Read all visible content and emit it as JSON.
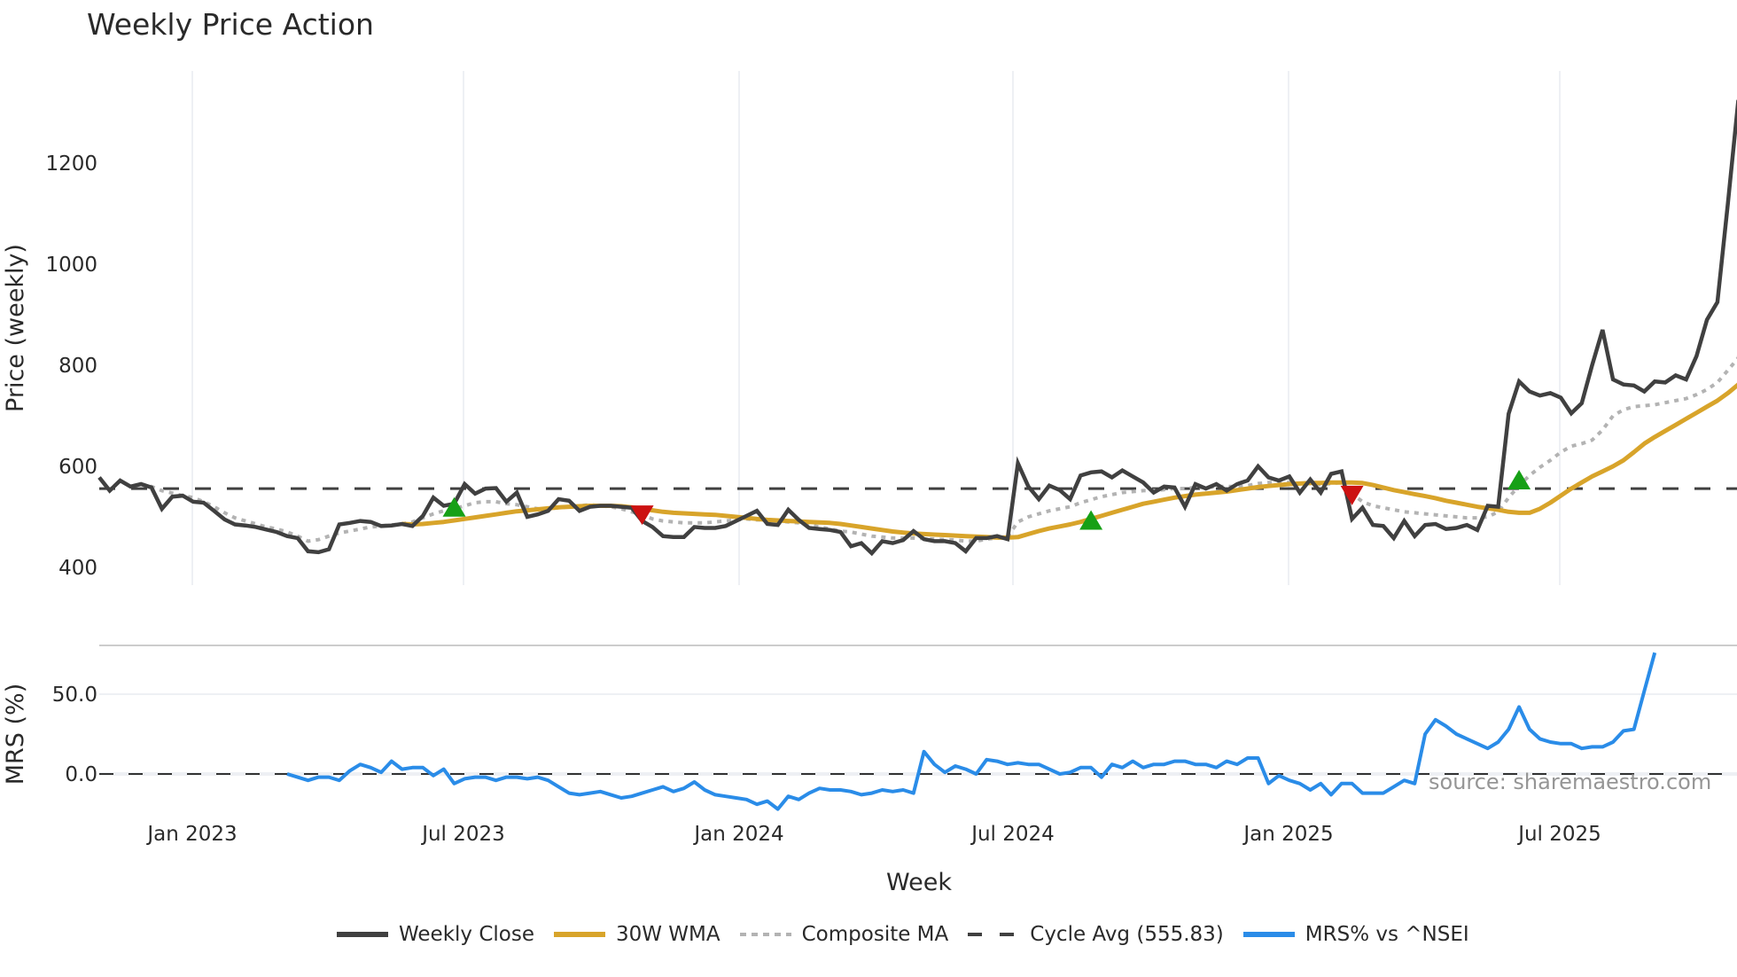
{
  "title": "Weekly Price Action",
  "watermark": "source: sharemaestro.com",
  "colors": {
    "weekly_close": "#404040",
    "wma": "#d8a42a",
    "composite_ma": "#b3b3b3",
    "cycle_avg": "#404040",
    "mrs": "#2a8ce8",
    "buy_marker": "#16a016",
    "sell_marker": "#cc1111",
    "grid": "#eef0f4",
    "panel_divider": "#cccccc"
  },
  "legend": [
    {
      "key": "weekly_close",
      "label": "Weekly Close",
      "style": "solid"
    },
    {
      "key": "wma",
      "label": "30W WMA",
      "style": "solid"
    },
    {
      "key": "composite_ma",
      "label": "Composite MA",
      "style": "dotted"
    },
    {
      "key": "cycle_avg",
      "label": "Cycle Avg (555.83)",
      "style": "dashed"
    },
    {
      "key": "mrs",
      "label": "MRS% vs ^NSEI",
      "style": "solid"
    }
  ],
  "chart_data": [
    {
      "type": "line",
      "title": "Weekly Price Action",
      "xlabel": "Week",
      "ylabel": "Price (weekly)",
      "x_tick_labels": [
        "Jan 2023",
        "Jul 2023",
        "Jan 2024",
        "Jul 2024",
        "Jan 2025",
        "Jul 2025"
      ],
      "y_ticks": [
        400,
        600,
        800,
        1000,
        1200
      ],
      "ylim": [
        365,
        1330
      ],
      "grid": "vertical",
      "legend_position": "bottom",
      "start_week": "2022-11-07",
      "series": [
        {
          "name": "Weekly Close",
          "values": [
            578,
            552,
            572,
            560,
            565,
            558,
            516,
            540,
            542,
            530,
            528,
            512,
            495,
            485,
            483,
            480,
            475,
            470,
            462,
            458,
            432,
            430,
            436,
            485,
            488,
            492,
            490,
            482,
            483,
            486,
            482,
            502,
            538,
            522,
            526,
            565,
            546,
            556,
            557,
            530,
            548,
            500,
            505,
            512,
            535,
            532,
            512,
            520,
            522,
            522,
            520,
            518,
            492,
            480,
            462,
            460,
            460,
            480,
            478,
            478,
            482,
            492,
            502,
            512,
            486,
            484,
            514,
            494,
            478,
            476,
            474,
            470,
            442,
            448,
            428,
            452,
            448,
            454,
            472,
            456,
            452,
            452,
            448,
            432,
            458,
            458,
            462,
            456,
            606,
            560,
            535,
            562,
            553,
            535,
            582,
            588,
            590,
            578,
            592,
            580,
            568,
            548,
            560,
            558,
            520,
            565,
            556,
            565,
            552,
            565,
            572,
            600,
            578,
            572,
            580,
            548,
            574,
            548,
            585,
            590,
            496,
            518,
            484,
            482,
            458,
            492,
            462,
            484,
            486,
            476,
            478,
            484,
            474,
            522,
            520,
            704,
            768,
            748,
            740,
            745,
            736,
            705,
            725,
            800,
            870,
            772,
            762,
            760,
            748,
            768,
            766,
            780,
            772,
            818,
            890,
            925,
            1120,
            1325
          ]
        },
        {
          "name": "30W WMA",
          "start_index": 29,
          "values": [
            486,
            485,
            486,
            488,
            490,
            493,
            496,
            499,
            502,
            505,
            508,
            511,
            513,
            515,
            517,
            519,
            520,
            521,
            522,
            522,
            522,
            521,
            519,
            516,
            513,
            510,
            508,
            507,
            506,
            505,
            504,
            502,
            500,
            498,
            496,
            494,
            493,
            492,
            491,
            490,
            489,
            488,
            486,
            483,
            480,
            477,
            474,
            471,
            469,
            467,
            466,
            465,
            464,
            463,
            462,
            461,
            460,
            459,
            459,
            460,
            466,
            472,
            477,
            481,
            485,
            490,
            496,
            502,
            508,
            514,
            520,
            526,
            530,
            534,
            538,
            541,
            544,
            546,
            548,
            550,
            553,
            556,
            559,
            561,
            563,
            565,
            566,
            567,
            567,
            568,
            568,
            568,
            567,
            563,
            558,
            553,
            549,
            545,
            541,
            537,
            532,
            528,
            524,
            520,
            517,
            514,
            510,
            508,
            508,
            516,
            528,
            542,
            556,
            568,
            580,
            590,
            600,
            612,
            628,
            645,
            658,
            670,
            682,
            694,
            706,
            718,
            730,
            745,
            762,
            790,
            820
          ]
        },
        {
          "name": "Composite MA",
          "values": [
            null,
            null,
            null,
            null,
            565,
            560,
            552,
            547,
            542,
            538,
            530,
            520,
            508,
            498,
            492,
            486,
            480,
            476,
            470,
            462,
            452,
            455,
            462,
            468,
            472,
            476,
            480,
            482,
            484,
            486,
            490,
            498,
            506,
            512,
            516,
            522,
            528,
            530,
            530,
            526,
            524,
            520,
            516,
            516,
            518,
            520,
            522,
            524,
            522,
            520,
            516,
            510,
            504,
            496,
            492,
            490,
            488,
            488,
            488,
            490,
            492,
            494,
            496,
            494,
            494,
            492,
            490,
            488,
            484,
            480,
            476,
            472,
            470,
            466,
            462,
            460,
            458,
            458,
            458,
            457,
            456,
            455,
            454,
            452,
            452,
            456,
            458,
            460,
            490,
            500,
            506,
            512,
            516,
            520,
            528,
            534,
            540,
            544,
            548,
            550,
            552,
            552,
            554,
            556,
            556,
            558,
            558,
            560,
            560,
            560,
            562,
            566,
            568,
            568,
            568,
            566,
            566,
            564,
            566,
            568,
            546,
            530,
            522,
            518,
            514,
            510,
            508,
            506,
            504,
            502,
            500,
            498,
            498,
            500,
            510,
            538,
            562,
            582,
            598,
            612,
            628,
            640,
            645,
            652,
            672,
            700,
            712,
            718,
            720,
            722,
            726,
            730,
            734,
            742,
            752,
            766,
            790,
            815,
            905
          ]
        },
        {
          "name": "Cycle Avg",
          "constant": 555.83
        }
      ],
      "markers": [
        {
          "type": "buy",
          "week_index": 34,
          "value": 518
        },
        {
          "type": "sell",
          "week_index": 52,
          "value": 505
        },
        {
          "type": "buy",
          "week_index": 95,
          "value": 492
        },
        {
          "type": "sell",
          "week_index": 120,
          "value": 544
        },
        {
          "type": "buy",
          "week_index": 136,
          "value": 572
        }
      ]
    },
    {
      "type": "line",
      "title": "MRS panel",
      "xlabel": "Week",
      "ylabel": "MRS (%)",
      "y_ticks": [
        0.0,
        50.0
      ],
      "ylim": [
        -30,
        80
      ],
      "reference_line": 0.0,
      "series": [
        {
          "name": "MRS% vs ^NSEI",
          "start_index": 18,
          "values": [
            0,
            -2,
            -4,
            -2,
            -2,
            -4,
            2,
            6,
            4,
            1,
            8,
            3,
            4,
            4,
            -1,
            3,
            -6,
            -3,
            -2,
            -2,
            -4,
            -2,
            -2,
            -3,
            -2,
            -4,
            -8,
            -12,
            -13,
            -12,
            -11,
            -13,
            -15,
            -14,
            -12,
            -10,
            -8,
            -11,
            -9,
            -5,
            -10,
            -13,
            -14,
            -15,
            -16,
            -19,
            -17,
            -22,
            -14,
            -16,
            -12,
            -9,
            -10,
            -10,
            -11,
            -13,
            -12,
            -10,
            -11,
            -10,
            -12,
            14,
            6,
            1,
            5,
            3,
            0,
            9,
            8,
            6,
            7,
            6,
            6,
            3,
            0,
            1,
            4,
            4,
            -2,
            6,
            4,
            8,
            4,
            6,
            6,
            8,
            8,
            6,
            6,
            4,
            8,
            6,
            10,
            10,
            -6,
            -1,
            -4,
            -6,
            -10,
            -6,
            -13,
            -6,
            -6,
            -12,
            -12,
            -12,
            -8,
            -4,
            -6,
            25,
            34,
            30,
            25,
            22,
            19,
            16,
            20,
            28,
            42,
            28,
            22,
            20,
            19,
            19,
            16,
            17,
            17,
            20,
            27,
            28,
            52,
            76
          ]
        }
      ]
    }
  ]
}
